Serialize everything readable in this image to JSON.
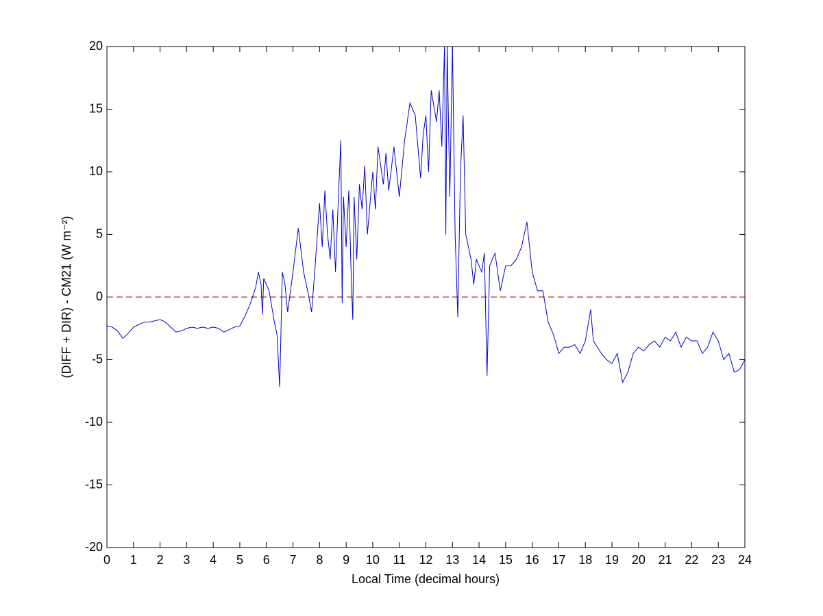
{
  "chart_data": {
    "type": "line",
    "xlabel": "Local Time (decimal hours)",
    "ylabel": "(DIFF + DIR) - CM21 (W m⁻²)",
    "x": [
      0.0,
      0.2,
      0.4,
      0.6,
      0.8,
      1.0,
      1.2,
      1.4,
      1.6,
      1.8,
      2.0,
      2.2,
      2.4,
      2.6,
      2.8,
      3.0,
      3.2,
      3.4,
      3.6,
      3.8,
      4.0,
      4.2,
      4.4,
      4.6,
      4.8,
      5.0,
      5.2,
      5.4,
      5.6,
      5.7,
      5.8,
      5.85,
      5.9,
      6.1,
      6.3,
      6.4,
      6.5,
      6.6,
      6.7,
      6.8,
      7.0,
      7.2,
      7.4,
      7.6,
      7.7,
      7.8,
      8.0,
      8.1,
      8.2,
      8.3,
      8.4,
      8.5,
      8.6,
      8.7,
      8.8,
      8.85,
      8.9,
      9.0,
      9.1,
      9.2,
      9.25,
      9.3,
      9.4,
      9.5,
      9.6,
      9.7,
      9.8,
      10.0,
      10.1,
      10.2,
      10.4,
      10.5,
      10.6,
      10.8,
      11.0,
      11.2,
      11.4,
      11.6,
      11.8,
      11.9,
      12.0,
      12.1,
      12.2,
      12.4,
      12.5,
      12.6,
      12.7,
      12.75,
      12.8,
      12.9,
      13.0,
      13.1,
      13.2,
      13.3,
      13.4,
      13.5,
      13.7,
      13.8,
      13.9,
      14.1,
      14.2,
      14.3,
      14.4,
      14.6,
      14.8,
      15.0,
      15.2,
      15.4,
      15.6,
      15.8,
      16.0,
      16.2,
      16.4,
      16.6,
      16.8,
      17.0,
      17.2,
      17.4,
      17.6,
      17.8,
      18.0,
      18.2,
      18.3,
      18.6,
      18.8,
      19.0,
      19.2,
      19.4,
      19.6,
      19.8,
      20.0,
      20.2,
      20.4,
      20.6,
      20.8,
      21.0,
      21.2,
      21.4,
      21.6,
      21.8,
      22.0,
      22.2,
      22.4,
      22.6,
      22.8,
      23.0,
      23.2,
      23.4,
      23.6,
      23.8,
      24.0
    ],
    "series": [
      {
        "color": "#0000cc",
        "values": [
          -2.3,
          -2.4,
          -2.7,
          -3.3,
          -2.9,
          -2.4,
          -2.2,
          -2.0,
          -2.0,
          -1.9,
          -1.8,
          -2.0,
          -2.4,
          -2.8,
          -2.7,
          -2.5,
          -2.4,
          -2.5,
          -2.4,
          -2.5,
          -2.4,
          -2.5,
          -2.8,
          -2.6,
          -2.4,
          -2.3,
          -1.5,
          -0.5,
          0.8,
          2.0,
          1.0,
          -1.4,
          1.5,
          0.5,
          -2.0,
          -3.0,
          -7.2,
          2.0,
          1.0,
          -1.2,
          2.0,
          5.5,
          2.0,
          0.0,
          -1.2,
          1.5,
          7.5,
          4.0,
          8.5,
          5.0,
          3.0,
          7.0,
          2.0,
          7.5,
          12.5,
          -0.5,
          8.0,
          4.0,
          8.5,
          1.0,
          -1.8,
          8.0,
          3.0,
          9.0,
          7.0,
          10.5,
          5.0,
          10.0,
          7.0,
          12.0,
          9.0,
          11.5,
          8.5,
          12.0,
          8.0,
          12.5,
          15.5,
          14.5,
          9.5,
          13.0,
          14.5,
          10.0,
          16.5,
          14.0,
          16.5,
          12.0,
          20,
          5.0,
          20,
          8.0,
          20,
          5.0,
          -1.6,
          10.0,
          14.5,
          5.0,
          3.0,
          1.0,
          3.0,
          2.0,
          3.5,
          -6.3,
          2.5,
          3.5,
          0.5,
          2.5,
          2.5,
          3.0,
          4.0,
          6.0,
          2.0,
          0.5,
          0.5,
          -2.0,
          -3.0,
          -4.5,
          -4.0,
          -4.0,
          -3.8,
          -4.5,
          -3.5,
          -1.0,
          -3.5,
          -4.5,
          -5.0,
          -5.3,
          -4.5,
          -6.8,
          -6.0,
          -4.5,
          -4.0,
          -4.3,
          -3.8,
          -3.5,
          -4.0,
          -3.2,
          -3.5,
          -2.8,
          -4.0,
          -3.2,
          -3.5,
          -3.5,
          -4.5,
          -4.0,
          -2.8,
          -3.5,
          -5.0,
          -4.5,
          -6.0,
          -5.8,
          -5.0
        ]
      }
    ],
    "reference_line": {
      "y": 0,
      "color": "#b03030",
      "style": "dashed"
    },
    "xlim": [
      0,
      24
    ],
    "xticks": [
      0,
      1,
      2,
      3,
      4,
      5,
      6,
      7,
      8,
      9,
      10,
      11,
      12,
      13,
      14,
      15,
      16,
      17,
      18,
      19,
      20,
      21,
      22,
      23,
      24
    ],
    "ylim": [
      -20,
      20
    ],
    "yticks": [
      -20,
      -15,
      -10,
      -5,
      0,
      5,
      10,
      15,
      20
    ]
  }
}
